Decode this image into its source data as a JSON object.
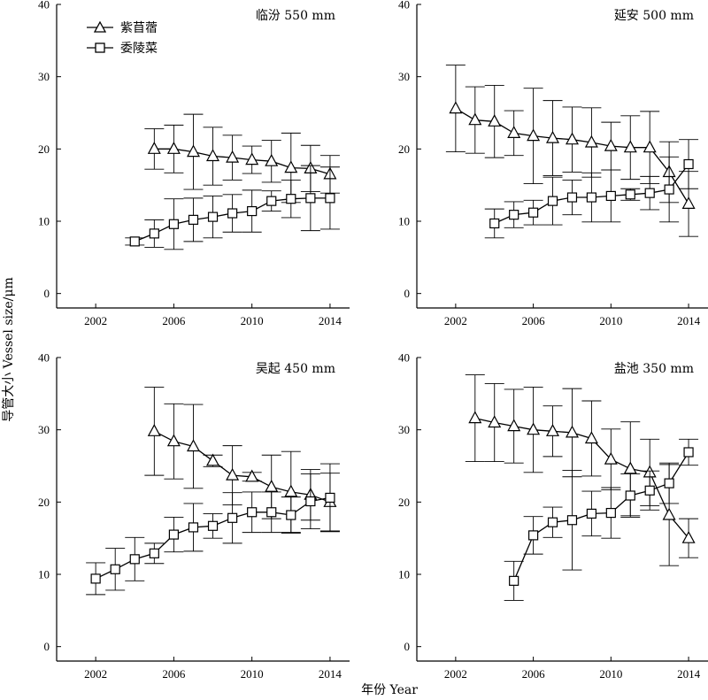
{
  "figure": {
    "ylabel": "导管大小 Vessel size/μm",
    "xlabel": "年份 Year"
  },
  "legend": {
    "alfalfa_label": "紫苜蓿",
    "sericea_label": "委陵菜"
  },
  "chart_data": [
    {
      "type": "line",
      "panel": "top-left",
      "title": "临汾 550 mm",
      "xlim": [
        2000,
        2015
      ],
      "ylim": [
        -2,
        40
      ],
      "xticks": [
        2002,
        2006,
        2010,
        2014
      ],
      "yticks": [
        0,
        10,
        20,
        30,
        40
      ],
      "legend": "top-left",
      "series": [
        {
          "name": "紫苜蓿",
          "marker": "triangle",
          "x": [
            2005,
            2006,
            2007,
            2008,
            2009,
            2010,
            2011,
            2012,
            2013,
            2014
          ],
          "y": [
            20.0,
            20.0,
            19.6,
            19.0,
            18.8,
            18.5,
            18.3,
            17.4,
            17.3,
            16.5
          ],
          "err": [
            2.8,
            3.3,
            5.2,
            4.0,
            3.1,
            1.9,
            2.9,
            4.8,
            3.2,
            2.6
          ]
        },
        {
          "name": "委陵菜",
          "marker": "square",
          "x": [
            2004,
            2005,
            2006,
            2007,
            2008,
            2009,
            2010,
            2011,
            2012,
            2013,
            2014
          ],
          "y": [
            7.2,
            8.3,
            9.6,
            10.2,
            10.6,
            11.1,
            11.4,
            12.8,
            13.1,
            13.2,
            13.2
          ],
          "err": [
            0.5,
            1.9,
            3.5,
            3.0,
            2.9,
            2.6,
            2.9,
            1.4,
            2.6,
            4.5,
            4.3
          ]
        }
      ]
    },
    {
      "type": "line",
      "panel": "top-right",
      "title": "延安 500 mm",
      "xlim": [
        2000,
        2015
      ],
      "ylim": [
        -2,
        40
      ],
      "xticks": [
        2002,
        2006,
        2010,
        2014
      ],
      "yticks": [
        0,
        10,
        20,
        30,
        40
      ],
      "series": [
        {
          "name": "紫苜蓿",
          "marker": "triangle",
          "x": [
            2002,
            2003,
            2004,
            2005,
            2006,
            2007,
            2008,
            2009,
            2010,
            2011,
            2012,
            2013,
            2014
          ],
          "y": [
            25.6,
            24.0,
            23.8,
            22.2,
            21.8,
            21.5,
            21.3,
            20.9,
            20.4,
            20.2,
            20.2,
            16.8,
            12.4
          ],
          "err": [
            6.0,
            4.6,
            5.0,
            3.1,
            6.6,
            5.2,
            4.5,
            4.8,
            3.3,
            4.4,
            5.0,
            4.2,
            4.5
          ]
        },
        {
          "name": "委陵菜",
          "marker": "square",
          "x": [
            2004,
            2005,
            2006,
            2007,
            2008,
            2009,
            2010,
            2011,
            2012,
            2013,
            2014
          ],
          "y": [
            9.7,
            10.9,
            11.2,
            12.8,
            13.3,
            13.3,
            13.5,
            13.7,
            13.9,
            14.4,
            17.9
          ],
          "err": [
            2.0,
            1.8,
            1.7,
            3.3,
            2.4,
            3.4,
            3.6,
            0.8,
            2.3,
            4.5,
            3.4
          ]
        }
      ]
    },
    {
      "type": "line",
      "panel": "bottom-left",
      "title": "吴起 450 mm",
      "xlim": [
        2000,
        2015
      ],
      "ylim": [
        -2,
        40
      ],
      "xticks": [
        2002,
        2006,
        2010,
        2014
      ],
      "yticks": [
        0,
        10,
        20,
        30,
        40
      ],
      "series": [
        {
          "name": "紫苜蓿",
          "marker": "triangle",
          "x": [
            2005,
            2006,
            2007,
            2008,
            2009,
            2010,
            2011,
            2012,
            2013,
            2014
          ],
          "y": [
            29.8,
            28.4,
            27.7,
            25.7,
            23.7,
            23.5,
            22.1,
            21.4,
            21.0,
            20.0
          ],
          "err": [
            6.1,
            5.2,
            5.8,
            0.8,
            4.1,
            0.6,
            4.4,
            5.6,
            3.5,
            4.0
          ]
        },
        {
          "name": "委陵菜",
          "marker": "square",
          "x": [
            2002,
            2003,
            2004,
            2005,
            2006,
            2007,
            2008,
            2009,
            2010,
            2011,
            2012,
            2013,
            2014
          ],
          "y": [
            9.4,
            10.7,
            12.1,
            12.9,
            15.5,
            16.5,
            16.7,
            17.8,
            18.6,
            18.6,
            18.2,
            20.1,
            20.6
          ],
          "err": [
            2.2,
            2.9,
            3.0,
            1.4,
            2.4,
            3.3,
            1.7,
            3.5,
            2.8,
            2.8,
            2.5,
            3.8,
            4.7
          ]
        }
      ]
    },
    {
      "type": "line",
      "panel": "bottom-right",
      "title": "盐池 350 mm",
      "xlim": [
        2000,
        2015
      ],
      "ylim": [
        -2,
        40
      ],
      "xticks": [
        2002,
        2006,
        2010,
        2014
      ],
      "yticks": [
        0,
        10,
        20,
        30,
        40
      ],
      "series": [
        {
          "name": "紫苜蓿",
          "marker": "triangle",
          "x": [
            2003,
            2004,
            2005,
            2006,
            2007,
            2008,
            2009,
            2010,
            2011,
            2012,
            2013,
            2014
          ],
          "y": [
            31.6,
            31.0,
            30.5,
            30.0,
            29.8,
            29.6,
            28.8,
            25.9,
            24.6,
            24.1,
            18.2,
            15.0
          ],
          "err": [
            6.0,
            5.4,
            5.1,
            5.9,
            3.5,
            6.1,
            5.2,
            4.2,
            6.5,
            4.6,
            7.0,
            2.7
          ]
        },
        {
          "name": "委陵菜",
          "marker": "square",
          "x": [
            2005,
            2006,
            2007,
            2008,
            2009,
            2010,
            2011,
            2012,
            2013,
            2014
          ],
          "y": [
            9.1,
            15.4,
            17.2,
            17.5,
            18.4,
            18.5,
            20.9,
            21.6,
            22.6,
            26.9
          ],
          "err": [
            2.7,
            2.6,
            2.1,
            6.9,
            3.1,
            3.5,
            3.0,
            2.7,
            2.8,
            1.8
          ]
        }
      ]
    }
  ]
}
